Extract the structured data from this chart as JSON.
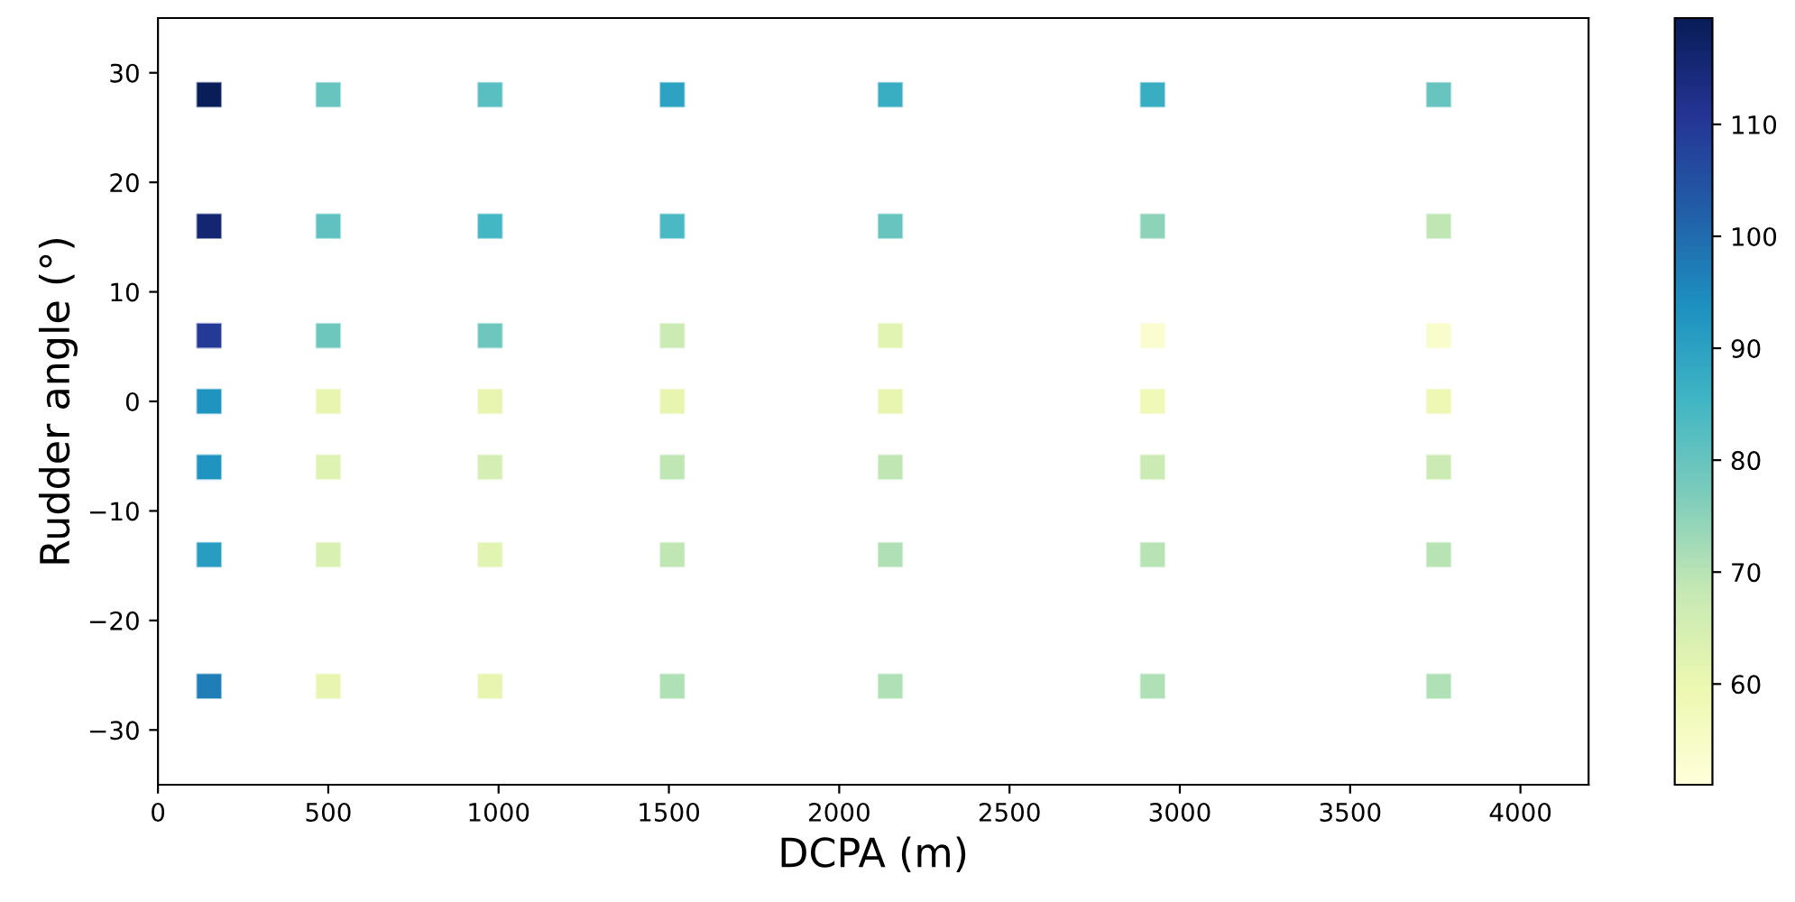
{
  "chart_data": {
    "type": "scatter",
    "xlabel": "DCPA (m)",
    "ylabel": "Rudder angle (°)",
    "marker": "square",
    "grid": false,
    "xlim": [
      0,
      4200
    ],
    "xticks": [
      0,
      500,
      1000,
      1500,
      2000,
      2500,
      3000,
      3500,
      4000
    ],
    "ylim": [
      -35,
      35
    ],
    "yticks": [
      {
        "value": -30,
        "label": "−30"
      },
      {
        "value": -20,
        "label": "−20"
      },
      {
        "value": -10,
        "label": "−10"
      },
      0,
      10,
      20,
      30
    ],
    "clim": [
      51,
      119.5
    ],
    "cticks": [
      60,
      70,
      80,
      90,
      100,
      110
    ],
    "series": [
      {
        "x": [
          150,
          500,
          975,
          1510,
          2150,
          2920,
          3760
        ],
        "values": [
          28,
          28,
          28,
          28,
          28,
          28,
          28
        ],
        "cvalues": [
          119,
          80,
          82,
          90,
          87,
          87,
          80
        ],
        "colors": [
          "#091e59",
          "#67c4be",
          "#59bfc1",
          "#2da2c2",
          "#39aec3",
          "#39aec3",
          "#67c4be"
        ]
      },
      {
        "x": [
          150,
          500,
          975,
          1510,
          2150,
          2920,
          3760
        ],
        "values": [
          16,
          16,
          16,
          16,
          16,
          16,
          16
        ],
        "cvalues": [
          116,
          81,
          85,
          84,
          80,
          75,
          69
        ],
        "colors": [
          "#142671",
          "#60c1c0",
          "#43b7c4",
          "#4ab9c3",
          "#67c4be",
          "#8dd3ba",
          "#c0e6b4"
        ]
      },
      {
        "x": [
          150,
          500,
          975,
          1510,
          2150,
          2920,
          3760
        ],
        "values": [
          6,
          6,
          6,
          6,
          6,
          6,
          6
        ],
        "cvalues": [
          110,
          79,
          79,
          67,
          62,
          53,
          54
        ],
        "colors": [
          "#253996",
          "#6ec7bd",
          "#6ec7bd",
          "#ccebb4",
          "#e2f4b2",
          "#fbfdd0",
          "#f9fccb"
        ]
      },
      {
        "x": [
          150,
          500,
          975,
          1510,
          2150,
          2920,
          3760
        ],
        "values": [
          0,
          0,
          0,
          0,
          0,
          0,
          0
        ],
        "cvalues": [
          93,
          61,
          61,
          61,
          61,
          58,
          59
        ],
        "colors": [
          "#2094c0",
          "#e7f5b1",
          "#e7f5b1",
          "#e7f5b1",
          "#e7f5b1",
          "#f0f9b8",
          "#eef8b4"
        ]
      },
      {
        "x": [
          150,
          500,
          975,
          1510,
          2150,
          2920,
          3760
        ],
        "values": [
          -6,
          -6,
          -6,
          -6,
          -6,
          -6,
          -6
        ],
        "cvalues": [
          93,
          63,
          65,
          69,
          69,
          67,
          67
        ],
        "colors": [
          "#2094c0",
          "#def2b2",
          "#d5eeb3",
          "#c0e6b4",
          "#c0e6b4",
          "#ccebb4",
          "#ccebb4"
        ]
      },
      {
        "x": [
          150,
          500,
          975,
          1510,
          2150,
          2920,
          3760
        ],
        "values": [
          -14,
          -14,
          -14,
          -14,
          -14,
          -14,
          -14
        ],
        "cvalues": [
          91,
          64,
          62,
          69,
          71,
          70,
          70
        ],
        "colors": [
          "#299dc1",
          "#d9f0b3",
          "#e2f4b2",
          "#c0e6b4",
          "#afe0b6",
          "#b7e3b5",
          "#b7e3b5"
        ]
      },
      {
        "x": [
          150,
          500,
          975,
          1510,
          2150,
          2920,
          3760
        ],
        "values": [
          -26,
          -26,
          -26,
          -26,
          -26,
          -26,
          -26
        ],
        "cvalues": [
          97,
          61,
          61,
          71,
          71,
          71,
          71
        ],
        "colors": [
          "#1f7eb7",
          "#e7f5b1",
          "#e7f5b1",
          "#afe0b6",
          "#afe0b6",
          "#afe0b6",
          "#afe0b6"
        ]
      }
    ]
  }
}
